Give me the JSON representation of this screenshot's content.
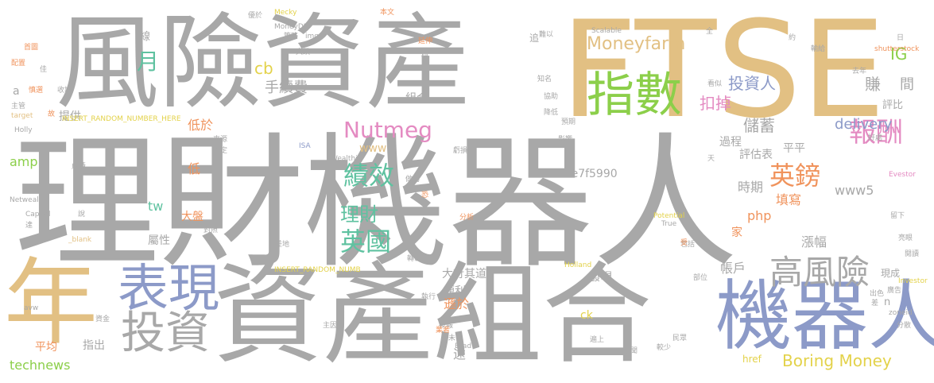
{
  "colors": {
    "gray": "#a8a8a8",
    "tan": "#e2c083",
    "blue": "#8c9ac8",
    "green": "#8ccf4a",
    "teal": "#5fc2a0",
    "pink": "#e48bc2",
    "orange": "#f0935c",
    "yellow": "#e3d24a"
  },
  "words": [
    "理財機器人",
    "FTSE",
    "資產組合",
    "風險資產",
    "機器人",
    "年",
    "指數",
    "表現",
    "投資",
    "高風險",
    "Nutmeg",
    "績效",
    "英鎊",
    "報酬",
    "Moneyfarm",
    "英國",
    "理財",
    "Boring Money",
    "delivery",
    "www5",
    "手續費",
    "投資人",
    "儲蓄",
    "扣掉",
    "IG",
    "月",
    "cb",
    "technews",
    "amp",
    "tw",
    "php",
    "www",
    "ae7f5990",
    "賺",
    "評比",
    "間",
    "組合",
    "提供",
    "過程",
    "評估表",
    "平平",
    "低於",
    "低",
    "大盤",
    "屬性",
    "時期",
    "填寫",
    "家",
    "漲幅",
    "帳戶",
    "大行其道",
    "發現",
    "便利",
    "遜於",
    "ck",
    "平均",
    "指出",
    "遠",
    "href",
    "現成",
    "n",
    "線",
    "a",
    "Mecky",
    "MoneyDJ",
    "img",
    "策略",
    "Wealthify",
    "ISA",
    "INSERT_RANDOM_NUMBER_HERE",
    "INSERT_RANDOM_NUMB",
    "Holland",
    "Scalable",
    "shutterstock",
    "Evestor",
    "Investor",
    "zoneid",
    "Netwealth",
    "Capital",
    "Holly",
    "target",
    "Potential",
    "True",
    "_blank",
    "src",
    "Brad",
    "avw",
    "本文",
    "延伸",
    "首圖",
    "配置",
    "主管",
    "收場",
    "慎選",
    "約",
    "輸給",
    "去年",
    "知名",
    "協助",
    "降低",
    "預期",
    "虧損",
    "看似",
    "好處",
    "亮眼",
    "閱讀",
    "差",
    "分散",
    "出色",
    "部位",
    "廣告",
    "轉載",
    "差地",
    "分析",
    "包括",
    "受",
    "留下",
    "新聞",
    "較少",
    "民眾",
    "遍上",
    "執行",
    "投報",
    "業者",
    "未",
    "資金",
    "主因",
    "成績",
    "最佳",
    "對照",
    "來源",
    "設定",
    "大跌",
    "穩",
    "全",
    "日",
    "優於",
    "追",
    "難以",
    "佳",
    "說",
    "達",
    "故",
    "恐",
    "做為",
    "影響",
    "天"
  ]
}
